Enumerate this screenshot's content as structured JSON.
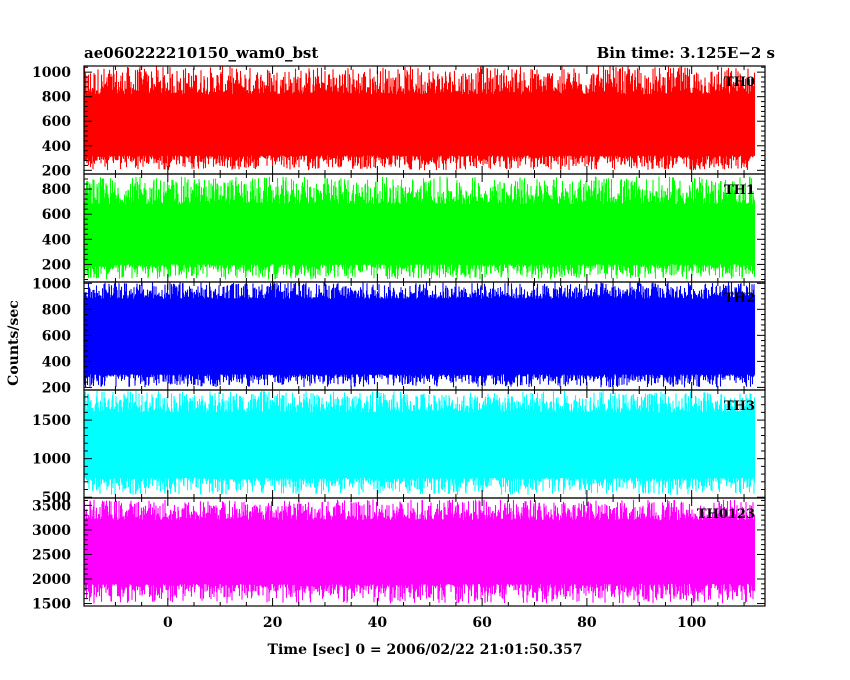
{
  "chart_data": {
    "type": "line",
    "title_left": "ae060222210150_wam0_bst",
    "title_right": "Bin time: 3.125E−2 s",
    "xlabel": "Time [sec] 0 = 2006/02/22 21:01:50.357",
    "ylabel": "Counts/sec",
    "xlim": [
      -16,
      114
    ],
    "data_xrange": [
      -16,
      112
    ],
    "x_ticks": [
      0,
      20,
      40,
      60,
      80,
      100
    ],
    "x_tick_labels": [
      "0",
      "20",
      "40",
      "60",
      "80",
      "100"
    ],
    "panels": [
      {
        "series": "TH0",
        "color": "#ff0000",
        "ylim": [
          170,
          1050
        ],
        "y_ticks": [
          200,
          400,
          600,
          800,
          1000
        ],
        "y_tick_labels": [
          "200",
          "400",
          "600",
          "800",
          "1000"
        ],
        "band": {
          "min": 200,
          "max": 1050,
          "low": 320,
          "high": 820
        }
      },
      {
        "series": "TH1",
        "color": "#00ff00",
        "ylim": [
          60,
          920
        ],
        "y_ticks": [
          200,
          400,
          600,
          800
        ],
        "y_tick_labels": [
          "200",
          "400",
          "600",
          "800"
        ],
        "band": {
          "min": 80,
          "max": 900,
          "low": 200,
          "high": 680
        }
      },
      {
        "series": "TH2",
        "color": "#0000ff",
        "ylim": [
          180,
          1010
        ],
        "y_ticks": [
          200,
          400,
          600,
          800,
          1000
        ],
        "y_tick_labels": [
          "200",
          "400",
          "600",
          "800",
          "1000"
        ],
        "band": {
          "min": 200,
          "max": 1010,
          "low": 300,
          "high": 880
        }
      },
      {
        "series": "TH3",
        "color": "#00ffff",
        "ylim": [
          490,
          1890
        ],
        "y_ticks": [
          500,
          1000,
          1500
        ],
        "y_tick_labels": [
          "500",
          "1000",
          "1500"
        ],
        "band": {
          "min": 530,
          "max": 1880,
          "low": 750,
          "high": 1600
        }
      },
      {
        "series": "TH0123",
        "color": "#ff00ff",
        "ylim": [
          1450,
          3650
        ],
        "y_ticks": [
          1500,
          2000,
          2500,
          3000,
          3500
        ],
        "y_tick_labels": [
          "1500",
          "2000",
          "2500",
          "3000",
          "3500"
        ],
        "band": {
          "min": 1500,
          "max": 3620,
          "low": 1900,
          "high": 3200
        }
      }
    ]
  }
}
